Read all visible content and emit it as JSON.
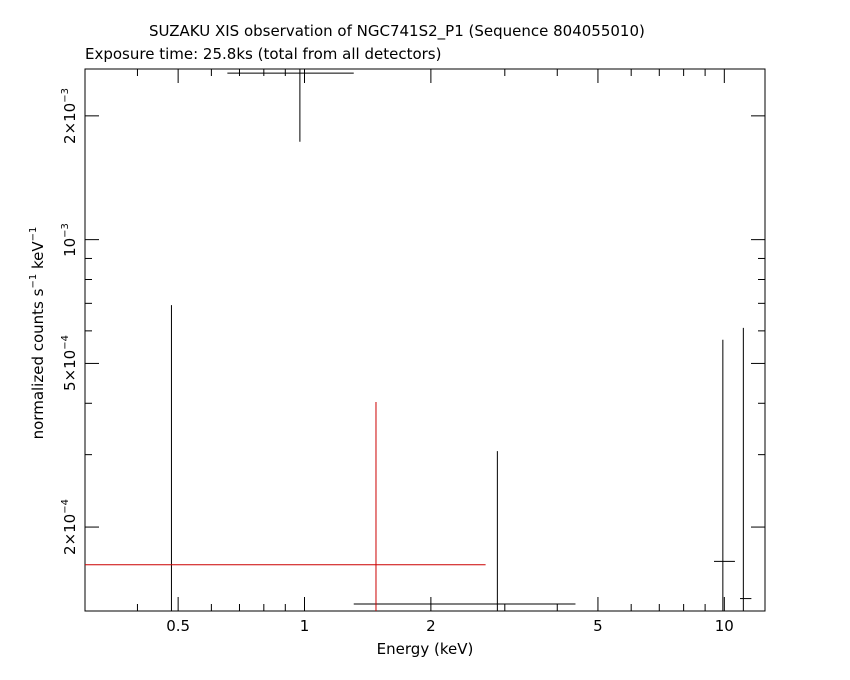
{
  "title_line1": "SUZAKU XIS observation of NGC741S2_P1 (Sequence 804055010)",
  "title_line2": "Exposure time: 25.8ks (total from all detectors)",
  "chart_data": {
    "type": "scatter",
    "xlabel": "Energy (keV)",
    "ylabel_text": "normalized counts s",
    "ylabel_sup1": "−1",
    "ylabel_mid": " keV",
    "ylabel_sup2": "−1",
    "xscale": "log",
    "yscale": "log",
    "xlim": [
      0.3,
      12.5
    ],
    "ylim": [
      0.000125,
      0.0026
    ],
    "x_ticks": [
      {
        "value": 0.5,
        "label": "0.5"
      },
      {
        "value": 1,
        "label": "1"
      },
      {
        "value": 2,
        "label": "2"
      },
      {
        "value": 5,
        "label": "5"
      },
      {
        "value": 10,
        "label": "10"
      }
    ],
    "y_ticks": [
      {
        "value": 0.0002,
        "mant": "2×10",
        "exp": "−4"
      },
      {
        "value": 0.0005,
        "mant": "5×10",
        "exp": "−4"
      },
      {
        "value": 0.001,
        "mant": "10",
        "exp": "−3"
      },
      {
        "value": 0.002,
        "mant": "2×10",
        "exp": "−3"
      }
    ],
    "series": [
      {
        "color": "#000000",
        "points": [
          {
            "x": 0.482,
            "y": 0.000125,
            "xerr": [
              0.482,
              0.482
            ],
            "yerr": [
              0.000125,
              0.000693
            ]
          },
          {
            "x": 0.975,
            "y": 0.00254,
            "xerr": [
              0.655,
              1.31
            ],
            "yerr": [
              0.00173,
              0.0026
            ]
          },
          {
            "x": 2.88,
            "y": 0.00013,
            "xerr": [
              1.31,
              4.42
            ],
            "yerr": [
              0.000125,
              0.000306
            ]
          },
          {
            "x": 9.92,
            "y": 0.000165,
            "xerr": [
              9.45,
              10.6
            ],
            "yerr": [
              0.000125,
              0.000571
            ]
          },
          {
            "x": 11.1,
            "y": 0.000134,
            "xerr": [
              10.9,
              11.6
            ],
            "yerr": [
              0.000125,
              0.00061
            ]
          }
        ]
      },
      {
        "color": "#cc0000",
        "points": [
          {
            "x": 1.48,
            "y": 0.000162,
            "xerr": [
              0.3,
              2.7
            ],
            "yerr": [
              0.000125,
              0.000403
            ]
          }
        ]
      }
    ]
  }
}
